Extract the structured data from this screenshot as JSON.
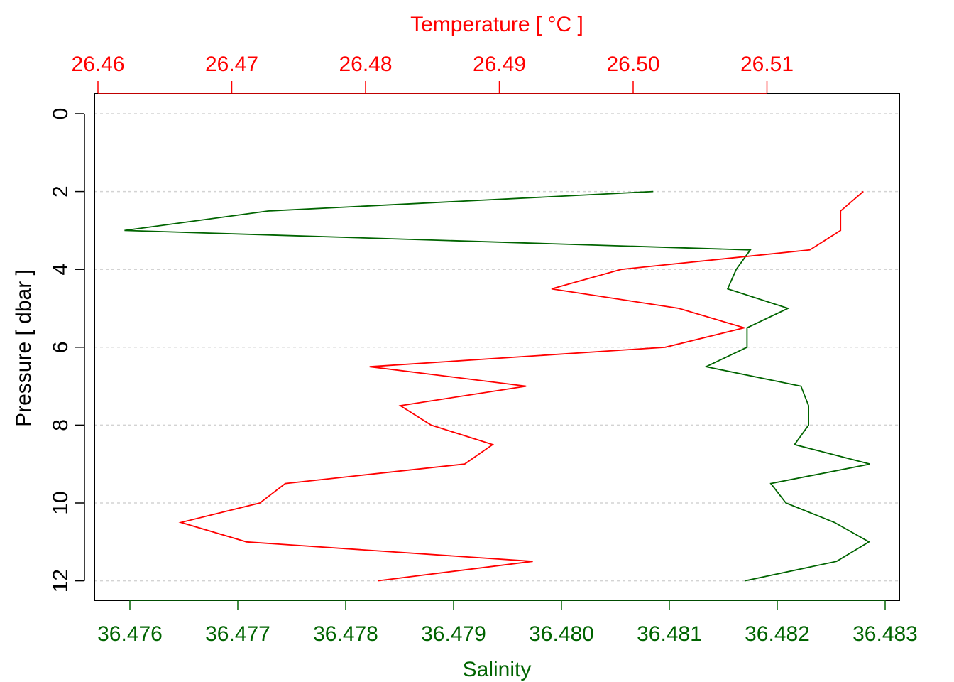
{
  "chart_data": {
    "type": "line",
    "top_axis": {
      "label": "Temperature [ °C ]",
      "color": "#ff0000",
      "ticks": [
        26.46,
        26.47,
        26.48,
        26.49,
        26.5,
        26.51
      ],
      "tick_labels": [
        "26.46",
        "26.47",
        "26.48",
        "26.49",
        "26.50",
        "26.51"
      ]
    },
    "bottom_axis": {
      "label": "Salinity",
      "color": "#006400",
      "ticks": [
        36.476,
        36.477,
        36.478,
        36.479,
        36.48,
        36.481,
        36.482,
        36.483
      ],
      "tick_labels": [
        "36.476",
        "36.477",
        "36.478",
        "36.479",
        "36.480",
        "36.481",
        "36.482",
        "36.483"
      ]
    },
    "y_axis": {
      "label": "Pressure [ dbar ]",
      "reversed": true,
      "ticks": [
        0,
        2,
        4,
        6,
        8,
        10,
        12
      ],
      "tick_labels": [
        "0",
        "2",
        "4",
        "6",
        "8",
        "10",
        "12"
      ]
    },
    "grid": "horizontal dashed at y ticks",
    "series": [
      {
        "color": "#006400",
        "axis": "bottom",
        "pressure": [
          2,
          2.5,
          3,
          3.5,
          4,
          4.5,
          5,
          5.5,
          6,
          6.5,
          7,
          7.5,
          8,
          8.5,
          9,
          9.5,
          10,
          10.5,
          11,
          11.5,
          12
        ],
        "salinity": [
          36.48085,
          36.47728,
          36.47595,
          36.48175,
          36.48162,
          36.48154,
          36.4821,
          36.48172,
          36.48172,
          36.48134,
          36.48222,
          36.48229,
          36.48229,
          36.48216,
          36.48286,
          36.48194,
          36.48208,
          36.48253,
          36.48285,
          36.48255,
          36.4817
        ]
      },
      {
        "color": "#ff0000",
        "axis": "top",
        "pressure": [
          2,
          2.5,
          3,
          3.5,
          4,
          4.5,
          5,
          5.5,
          6,
          6.5,
          7,
          7.5,
          8,
          8.5,
          9,
          9.5,
          10,
          10.5,
          11,
          11.5,
          12
        ],
        "temperature": [
          26.5172,
          26.5155,
          26.5155,
          26.5132,
          26.4991,
          26.4939,
          26.5034,
          26.5083,
          26.5024,
          26.4803,
          26.492,
          26.4826,
          26.4849,
          26.4895,
          26.4874,
          26.474,
          26.4721,
          26.4662,
          26.4711,
          26.4925,
          26.4809
        ]
      }
    ]
  }
}
